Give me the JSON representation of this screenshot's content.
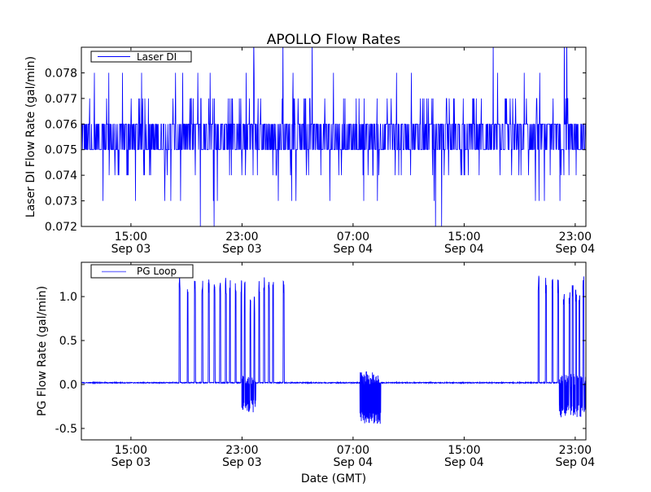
{
  "chart_data": [
    {
      "type": "line",
      "title": "APOLLO Flow Rates",
      "xlabel": "",
      "ylabel": "Laser DI Flow Rate (gal/min)",
      "x_units": "hours since Sep 03 00:00 GMT",
      "xlim": [
        11.43,
        47.77
      ],
      "ylim": [
        0.072,
        0.079
      ],
      "yticks": [
        "0.072",
        "0.073",
        "0.074",
        "0.075",
        "0.076",
        "0.077",
        "0.078"
      ],
      "ytick_values": [
        0.072,
        0.073,
        0.074,
        0.075,
        0.076,
        0.077,
        0.078
      ],
      "xticks": [
        {
          "value": 15,
          "time": "15:00",
          "date": "Sep 03"
        },
        {
          "value": 23,
          "time": "23:00",
          "date": "Sep 03"
        },
        {
          "value": 31,
          "time": "07:00",
          "date": "Sep 04"
        },
        {
          "value": 39,
          "time": "15:00",
          "date": "Sep 04"
        },
        {
          "value": 47,
          "time": "23:00",
          "date": "Sep 04"
        }
      ],
      "legend": {
        "entries": [
          "Laser DI"
        ],
        "placement": "top-left"
      },
      "series": [
        {
          "name": "Laser DI",
          "color": "#0000ff",
          "description_model": {
            "base_levels": [
              0.075,
              0.076
            ],
            "spike_levels": [
              0.072,
              0.073,
              0.074,
              0.077,
              0.078,
              0.079
            ],
            "quantum": 0.001
          }
        }
      ]
    },
    {
      "type": "line",
      "title": "",
      "xlabel": "Date (GMT)",
      "ylabel": "PG Flow Rate (gal/min)",
      "x_units": "hours since Sep 03 00:00 GMT",
      "xlim": [
        11.43,
        47.77
      ],
      "ylim": [
        -0.63,
        1.39
      ],
      "yticks": [
        "-0.5",
        "0.0",
        "0.5",
        "1.0"
      ],
      "ytick_values": [
        -0.5,
        0.0,
        0.5,
        1.0
      ],
      "xticks": [
        {
          "value": 15,
          "time": "15:00",
          "date": "Sep 03"
        },
        {
          "value": 23,
          "time": "23:00",
          "date": "Sep 03"
        },
        {
          "value": 31,
          "time": "07:00",
          "date": "Sep 04"
        },
        {
          "value": 39,
          "time": "15:00",
          "date": "Sep 04"
        },
        {
          "value": 47,
          "time": "23:00",
          "date": "Sep 04"
        }
      ],
      "legend": {
        "entries": [
          "PG Loop"
        ],
        "placement": "top-left"
      },
      "series": [
        {
          "name": "PG Loop",
          "color": "#0000ff",
          "baseline": 0.02,
          "pulses": [
            {
              "t": 18.5,
              "peak": 1.25
            },
            {
              "t": 19.09,
              "peak": 1.2
            },
            {
              "t": 19.61,
              "peak": 1.2
            },
            {
              "t": 20.14,
              "peak": 1.22
            },
            {
              "t": 20.61,
              "peak": 1.2
            },
            {
              "t": 21.02,
              "peak": 1.2
            },
            {
              "t": 21.43,
              "peak": 1.22
            },
            {
              "t": 21.84,
              "peak": 1.22
            },
            {
              "t": 22.13,
              "peak": 1.2
            },
            {
              "t": 22.54,
              "peak": 1.2
            },
            {
              "t": 22.95,
              "peak": 1.2
            },
            {
              "t": 23.19,
              "peak": 1.18
            },
            {
              "t": 23.6,
              "peak": 1.0
            },
            {
              "t": 23.89,
              "peak": 1.0
            },
            {
              "t": 24.24,
              "peak": 1.18
            },
            {
              "t": 24.59,
              "peak": 1.23
            },
            {
              "t": 24.94,
              "peak": 1.24
            },
            {
              "t": 25.24,
              "peak": 1.18
            },
            {
              "t": 26.0,
              "peak": 1.22
            },
            {
              "t": 44.36,
              "peak": 1.26
            },
            {
              "t": 44.89,
              "peak": 1.23
            },
            {
              "t": 45.36,
              "peak": 1.2
            },
            {
              "t": 45.77,
              "peak": 1.2
            },
            {
              "t": 46.18,
              "peak": 1.1
            },
            {
              "t": 46.59,
              "peak": 1.1
            },
            {
              "t": 46.82,
              "peak": 1.13
            },
            {
              "t": 47.06,
              "peak": 1.13
            },
            {
              "t": 47.3,
              "peak": 1.1
            },
            {
              "t": 47.59,
              "peak": 1.23
            },
            {
              "t": 47.94,
              "peak": 1.1
            },
            {
              "t": 48.24,
              "peak": 1.1
            }
          ],
          "bursts": [
            {
              "start": 22.95,
              "end": 24.0,
              "min": -0.32,
              "max": 0.1
            },
            {
              "start": 31.5,
              "end": 33.0,
              "min": -0.45,
              "max": 0.15
            },
            {
              "start": 45.86,
              "end": 47.77,
              "min": -0.38,
              "max": 0.12
            }
          ]
        }
      ]
    }
  ]
}
